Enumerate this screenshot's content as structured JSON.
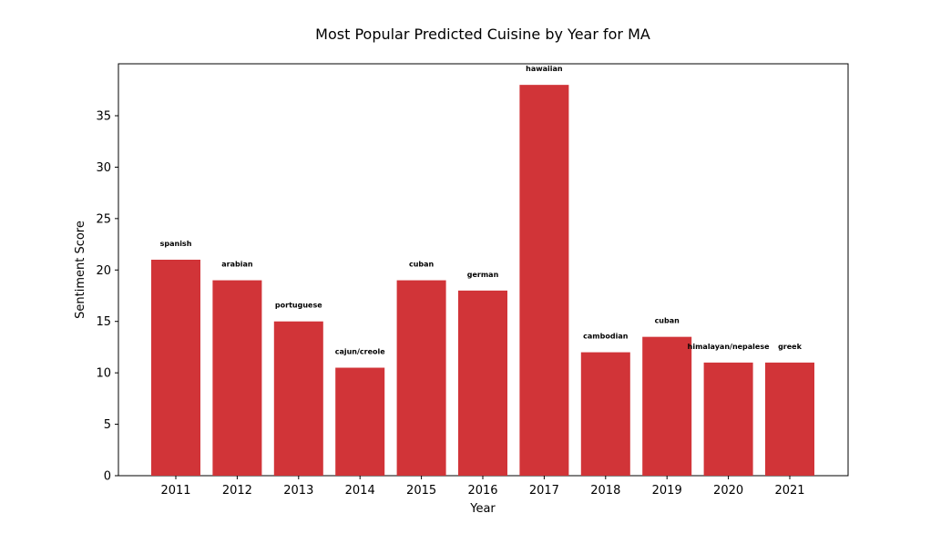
{
  "chart_data": {
    "type": "bar",
    "title": "Most Popular Predicted Cuisine by Year for MA",
    "xlabel": "Year",
    "ylabel": "Sentiment Score",
    "categories": [
      "2011",
      "2012",
      "2013",
      "2014",
      "2015",
      "2016",
      "2017",
      "2018",
      "2019",
      "2020",
      "2021"
    ],
    "values": [
      21,
      19,
      15,
      10.5,
      19,
      18,
      38,
      12,
      13.5,
      11,
      11
    ],
    "bar_labels": [
      "spanish",
      "arabian",
      "portuguese",
      "cajun/creole",
      "cuban",
      "german",
      "hawaiian",
      "cambodian",
      "cuban",
      "himalayan/nepalese",
      "greek"
    ],
    "yticks": [
      0,
      5,
      10,
      15,
      20,
      25,
      30,
      35
    ],
    "ylim": [
      0,
      40
    ],
    "bar_color": "#d13438",
    "grid": false,
    "legend": "none"
  }
}
